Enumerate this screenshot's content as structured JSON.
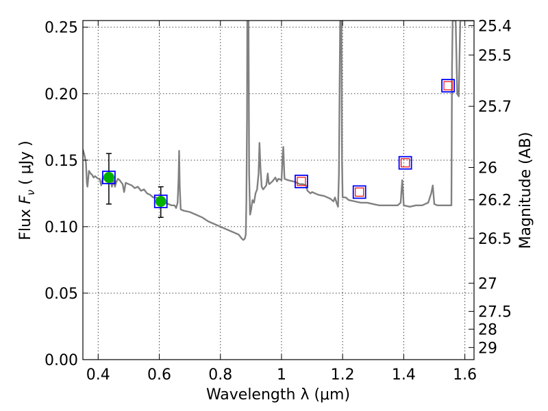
{
  "chart_data": {
    "type": "scatter",
    "xlabel": "Wavelength  λ (μm)",
    "ylabel": "Flux  F_ν  ( μJy )",
    "ylabel_parts": {
      "prefix": "Flux  ",
      "symbol": "F",
      "subscript": "ν",
      "suffix": "  ( μJy )"
    },
    "y2label": "Magnitude (AB)",
    "xlim": [
      0.35,
      1.63
    ],
    "ylim": [
      0.0,
      0.255
    ],
    "grid": true,
    "x_ticks": [
      {
        "value": 0.4,
        "label": "0.4"
      },
      {
        "value": 0.6,
        "label": "0.6"
      },
      {
        "value": 0.8,
        "label": "0.8"
      },
      {
        "value": 1.0,
        "label": "1"
      },
      {
        "value": 1.2,
        "label": "1.2"
      },
      {
        "value": 1.4,
        "label": "1.4"
      },
      {
        "value": 1.6,
        "label": "1.6"
      }
    ],
    "y_ticks": [
      {
        "value": 0.0,
        "label": "0.00"
      },
      {
        "value": 0.05,
        "label": "0.05"
      },
      {
        "value": 0.1,
        "label": "0.10"
      },
      {
        "value": 0.15,
        "label": "0.15"
      },
      {
        "value": 0.2,
        "label": "0.20"
      },
      {
        "value": 0.25,
        "label": "0.25"
      }
    ],
    "y2_ticks": [
      {
        "flux": 0.2512,
        "label": "25.4"
      },
      {
        "flux": 0.2291,
        "label": "25.5"
      },
      {
        "flux": 0.1905,
        "label": "25.7"
      },
      {
        "flux": 0.1445,
        "label": "26"
      },
      {
        "flux": 0.1202,
        "label": "26.2"
      },
      {
        "flux": 0.0912,
        "label": "26.5"
      },
      {
        "flux": 0.0575,
        "label": "27"
      },
      {
        "flux": 0.0363,
        "label": "27.5"
      },
      {
        "flux": 0.0229,
        "label": "28"
      },
      {
        "flux": 0.0091,
        "label": "29"
      }
    ],
    "colors": {
      "model": "#808080",
      "observed": "#00b000",
      "synthetic_box": "#0000ff",
      "detection_box": "#ff0000",
      "errorbar": "#000000"
    },
    "model_spectrum": [
      [
        0.35,
        0.158
      ],
      [
        0.355,
        0.154
      ],
      [
        0.36,
        0.148
      ],
      [
        0.363,
        0.133
      ],
      [
        0.365,
        0.13
      ],
      [
        0.37,
        0.142
      ],
      [
        0.375,
        0.14
      ],
      [
        0.38,
        0.139
      ],
      [
        0.385,
        0.137
      ],
      [
        0.39,
        0.138
      ],
      [
        0.395,
        0.137
      ],
      [
        0.4,
        0.136
      ],
      [
        0.405,
        0.136
      ],
      [
        0.41,
        0.131
      ],
      [
        0.415,
        0.137
      ],
      [
        0.42,
        0.136
      ],
      [
        0.43,
        0.137
      ],
      [
        0.44,
        0.136
      ],
      [
        0.445,
        0.13
      ],
      [
        0.45,
        0.135
      ],
      [
        0.455,
        0.13
      ],
      [
        0.46,
        0.134
      ],
      [
        0.465,
        0.136
      ],
      [
        0.47,
        0.135
      ],
      [
        0.48,
        0.132
      ],
      [
        0.485,
        0.126
      ],
      [
        0.49,
        0.133
      ],
      [
        0.5,
        0.132
      ],
      [
        0.51,
        0.131
      ],
      [
        0.52,
        0.129
      ],
      [
        0.53,
        0.13
      ],
      [
        0.54,
        0.127
      ],
      [
        0.55,
        0.128
      ],
      [
        0.56,
        0.125
      ],
      [
        0.57,
        0.124
      ],
      [
        0.58,
        0.122
      ],
      [
        0.59,
        0.122
      ],
      [
        0.6,
        0.12
      ],
      [
        0.61,
        0.119
      ],
      [
        0.62,
        0.118
      ],
      [
        0.63,
        0.117
      ],
      [
        0.64,
        0.116
      ],
      [
        0.65,
        0.116
      ],
      [
        0.655,
        0.114
      ],
      [
        0.66,
        0.118
      ],
      [
        0.663,
        0.135
      ],
      [
        0.665,
        0.157
      ],
      [
        0.667,
        0.13
      ],
      [
        0.67,
        0.113
      ],
      [
        0.68,
        0.112
      ],
      [
        0.7,
        0.111
      ],
      [
        0.72,
        0.109
      ],
      [
        0.74,
        0.107
      ],
      [
        0.76,
        0.104
      ],
      [
        0.78,
        0.102
      ],
      [
        0.8,
        0.1
      ],
      [
        0.82,
        0.098
      ],
      [
        0.84,
        0.096
      ],
      [
        0.86,
        0.094
      ],
      [
        0.87,
        0.091
      ],
      [
        0.875,
        0.09
      ],
      [
        0.88,
        0.091
      ],
      [
        0.883,
        0.094
      ],
      [
        0.885,
        0.12
      ],
      [
        0.887,
        0.18
      ],
      [
        0.888,
        0.255
      ],
      [
        0.892,
        0.255
      ],
      [
        0.894,
        0.14
      ],
      [
        0.897,
        0.109
      ],
      [
        0.9,
        0.112
      ],
      [
        0.905,
        0.12
      ],
      [
        0.91,
        0.118
      ],
      [
        0.915,
        0.125
      ],
      [
        0.92,
        0.128
      ],
      [
        0.925,
        0.14
      ],
      [
        0.928,
        0.163
      ],
      [
        0.931,
        0.145
      ],
      [
        0.935,
        0.13
      ],
      [
        0.94,
        0.128
      ],
      [
        0.95,
        0.131
      ],
      [
        0.955,
        0.14
      ],
      [
        0.958,
        0.133
      ],
      [
        0.96,
        0.132
      ],
      [
        0.97,
        0.134
      ],
      [
        0.98,
        0.137
      ],
      [
        0.985,
        0.134
      ],
      [
        0.99,
        0.136
      ],
      [
        1.0,
        0.135
      ],
      [
        1.003,
        0.15
      ],
      [
        1.006,
        0.16
      ],
      [
        1.009,
        0.14
      ],
      [
        1.01,
        0.136
      ],
      [
        1.02,
        0.135
      ],
      [
        1.04,
        0.134
      ],
      [
        1.05,
        0.133
      ],
      [
        1.06,
        0.132
      ],
      [
        1.07,
        0.132
      ],
      [
        1.08,
        0.131
      ],
      [
        1.085,
        0.127
      ],
      [
        1.09,
        0.126
      ],
      [
        1.095,
        0.125
      ],
      [
        1.1,
        0.126
      ],
      [
        1.12,
        0.124
      ],
      [
        1.14,
        0.123
      ],
      [
        1.16,
        0.121
      ],
      [
        1.17,
        0.119
      ],
      [
        1.175,
        0.122
      ],
      [
        1.18,
        0.118
      ],
      [
        1.185,
        0.115
      ],
      [
        1.188,
        0.14
      ],
      [
        1.19,
        0.2
      ],
      [
        1.192,
        0.255
      ],
      [
        1.196,
        0.255
      ],
      [
        1.198,
        0.15
      ],
      [
        1.2,
        0.122
      ],
      [
        1.21,
        0.122
      ],
      [
        1.22,
        0.12
      ],
      [
        1.24,
        0.119
      ],
      [
        1.26,
        0.118
      ],
      [
        1.28,
        0.118
      ],
      [
        1.3,
        0.117
      ],
      [
        1.32,
        0.116
      ],
      [
        1.34,
        0.116
      ],
      [
        1.36,
        0.116
      ],
      [
        1.38,
        0.116
      ],
      [
        1.39,
        0.118
      ],
      [
        1.395,
        0.135
      ],
      [
        1.398,
        0.125
      ],
      [
        1.4,
        0.116
      ],
      [
        1.42,
        0.115
      ],
      [
        1.44,
        0.116
      ],
      [
        1.46,
        0.116
      ],
      [
        1.48,
        0.118
      ],
      [
        1.49,
        0.125
      ],
      [
        1.495,
        0.131
      ],
      [
        1.5,
        0.117
      ],
      [
        1.51,
        0.116
      ],
      [
        1.53,
        0.116
      ],
      [
        1.55,
        0.116
      ],
      [
        1.556,
        0.116
      ],
      [
        1.558,
        0.22
      ],
      [
        1.56,
        0.255
      ],
      [
        1.57,
        0.255
      ],
      [
        1.575,
        0.2
      ],
      [
        1.58,
        0.198
      ],
      [
        1.585,
        0.255
      ],
      [
        1.595,
        0.255
      ],
      [
        1.6,
        0.255
      ],
      [
        1.63,
        0.255
      ]
    ],
    "observed": [
      {
        "x": 0.435,
        "y": 0.137,
        "err_low": 0.117,
        "err_high": 0.155
      },
      {
        "x": 0.605,
        "y": 0.119,
        "err_low": 0.107,
        "err_high": 0.13
      }
    ],
    "synthetic": [
      {
        "x": 0.435,
        "y": 0.137,
        "detected": false
      },
      {
        "x": 0.605,
        "y": 0.119,
        "detected": false
      },
      {
        "x": 1.065,
        "y": 0.134,
        "detected": true
      },
      {
        "x": 1.255,
        "y": 0.126,
        "detected": true
      },
      {
        "x": 1.405,
        "y": 0.148,
        "detected": true
      },
      {
        "x": 1.545,
        "y": 0.206,
        "detected": true
      }
    ]
  }
}
